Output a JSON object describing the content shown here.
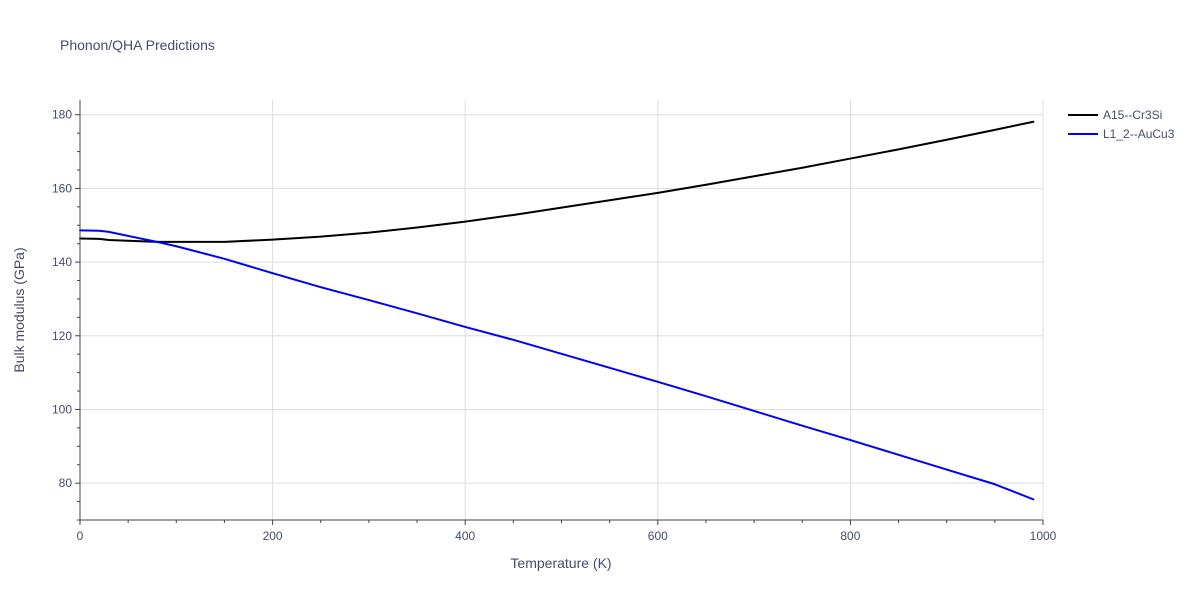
{
  "chart_data": {
    "type": "line",
    "title": "Phonon/QHA Predictions",
    "xlabel": "Temperature (K)",
    "ylabel": "Bulk modulus (GPa)",
    "xlim": [
      0,
      1000
    ],
    "ylim": [
      70,
      184
    ],
    "xticks": [
      0,
      200,
      400,
      600,
      800,
      1000
    ],
    "yticks": [
      80,
      100,
      120,
      140,
      160,
      180
    ],
    "xtick_labels": [
      "0",
      "200",
      "400",
      "600",
      "800",
      "1000"
    ],
    "ytick_labels": [
      "80",
      "100",
      "120",
      "140",
      "160",
      "180"
    ],
    "grid": true,
    "legend_position": "top-right",
    "series": [
      {
        "name": "A15--Cr3Si",
        "color": "#000000",
        "x": [
          0,
          20,
          30,
          50,
          80,
          100,
          150,
          200,
          250,
          300,
          350,
          400,
          450,
          500,
          550,
          600,
          650,
          700,
          750,
          800,
          850,
          900,
          950,
          990
        ],
        "y": [
          146.4,
          146.3,
          146.0,
          145.8,
          145.5,
          145.5,
          145.5,
          146.1,
          146.9,
          148.0,
          149.4,
          151.0,
          152.8,
          154.8,
          156.8,
          158.8,
          161.0,
          163.3,
          165.6,
          168.1,
          170.6,
          173.2,
          175.9,
          178.1
        ]
      },
      {
        "name": "L1_2--AuCu3",
        "color": "#0000ff",
        "x": [
          0,
          20,
          30,
          50,
          80,
          100,
          150,
          200,
          250,
          300,
          350,
          400,
          450,
          500,
          550,
          600,
          650,
          700,
          750,
          800,
          850,
          900,
          950,
          990
        ],
        "y": [
          148.6,
          148.5,
          148.2,
          147.1,
          145.5,
          144.3,
          140.9,
          137.0,
          133.2,
          129.7,
          126.1,
          122.4,
          118.9,
          115.1,
          111.3,
          107.5,
          103.6,
          99.6,
          95.6,
          91.7,
          87.7,
          83.7,
          79.7,
          75.6
        ]
      }
    ]
  }
}
